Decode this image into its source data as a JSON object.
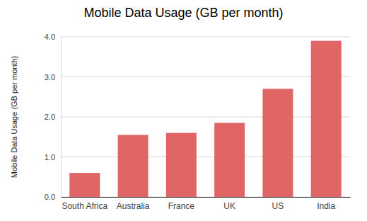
{
  "chart_data": {
    "type": "bar",
    "title": "Mobile Data Usage (GB per month)",
    "ylabel": "Mobile Data Usage (GB per month)",
    "categories": [
      "South Africa",
      "Australia",
      "France",
      "UK",
      "US",
      "India"
    ],
    "values": [
      0.6,
      1.55,
      1.6,
      1.85,
      2.7,
      3.9
    ],
    "color": "#e06666",
    "ylim": [
      0,
      4
    ],
    "yticks": [
      {
        "value": 0,
        "label": "0.0"
      },
      {
        "value": 1,
        "label": "1.0"
      },
      {
        "value": 2,
        "label": "2.0"
      },
      {
        "value": 3,
        "label": "3.0"
      },
      {
        "value": 4,
        "label": "4.0"
      }
    ],
    "grid": true
  }
}
